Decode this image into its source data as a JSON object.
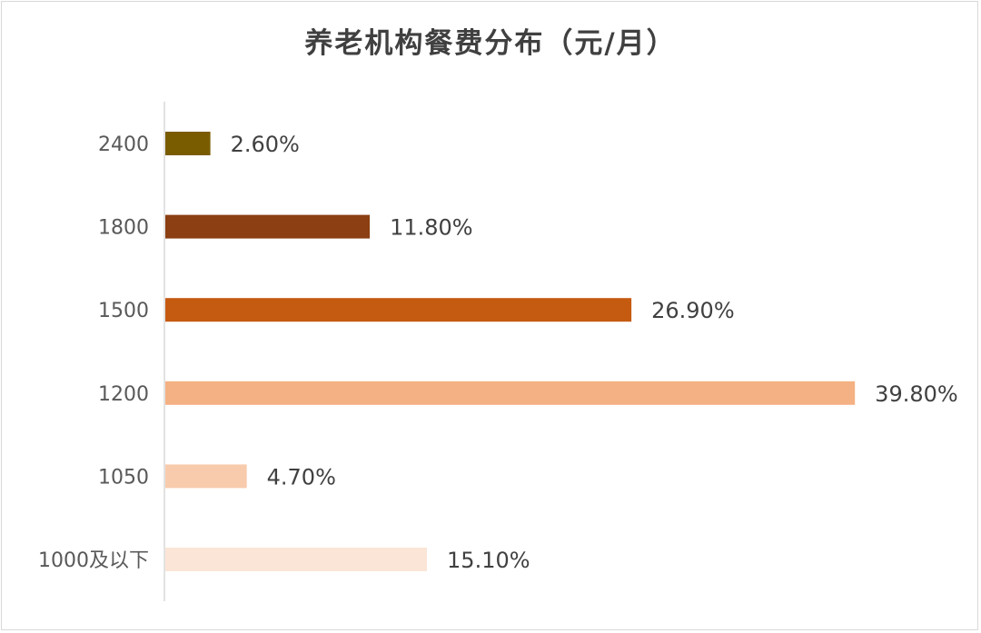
{
  "chart_data": {
    "type": "bar",
    "orientation": "horizontal",
    "title": "养老机构餐费分布（元/月）",
    "xlabel": "",
    "ylabel": "",
    "categories": [
      "2400",
      "1800",
      "1500",
      "1200",
      "1050",
      "1000及以下"
    ],
    "values": [
      2.6,
      11.8,
      26.9,
      39.8,
      4.7,
      15.1
    ],
    "data_labels": [
      "2.60%",
      "11.80%",
      "26.90%",
      "39.80%",
      "4.70%",
      "15.10%"
    ],
    "colors": [
      "#7a5c00",
      "#8b3f12",
      "#c55a11",
      "#f4b183",
      "#f8cbad",
      "#fbe5d6"
    ],
    "xlim": [
      0,
      40
    ],
    "grid": false,
    "legend": "none"
  }
}
